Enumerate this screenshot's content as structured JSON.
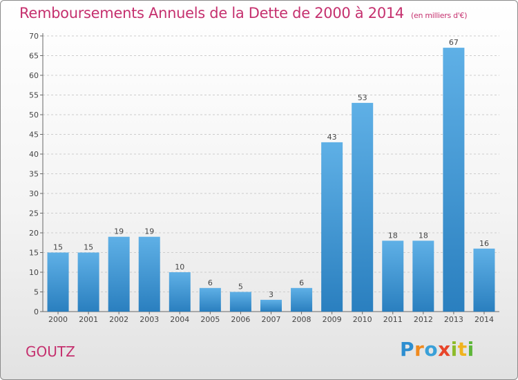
{
  "header": {
    "title": "Remboursements Annuels de la Dette de 2000 à 2014",
    "unit": "(en milliers d'€)"
  },
  "footer": {
    "commune": "GOUTZ",
    "brand": "Proxiti"
  },
  "colors": {
    "bar_top": "#5fb0e6",
    "bar_bottom": "#2a7fbf",
    "title": "#c5306e",
    "grid": "#cccccc"
  },
  "chart_data": {
    "type": "bar",
    "title": "Remboursements Annuels de la Dette de 2000 à 2014",
    "subtitle": "(en milliers d'€)",
    "categories": [
      "2000",
      "2001",
      "2002",
      "2003",
      "2004",
      "2005",
      "2006",
      "2007",
      "2008",
      "2009",
      "2010",
      "2011",
      "2012",
      "2013",
      "2014"
    ],
    "values": [
      15,
      15,
      19,
      19,
      10,
      6,
      5,
      3,
      6,
      43,
      53,
      18,
      18,
      67,
      16
    ],
    "ylim": [
      0,
      70
    ],
    "yticks": [
      0,
      5,
      10,
      15,
      20,
      25,
      30,
      35,
      40,
      45,
      50,
      55,
      60,
      65,
      70
    ],
    "grid": "horizontal dashed",
    "legend": "none"
  }
}
